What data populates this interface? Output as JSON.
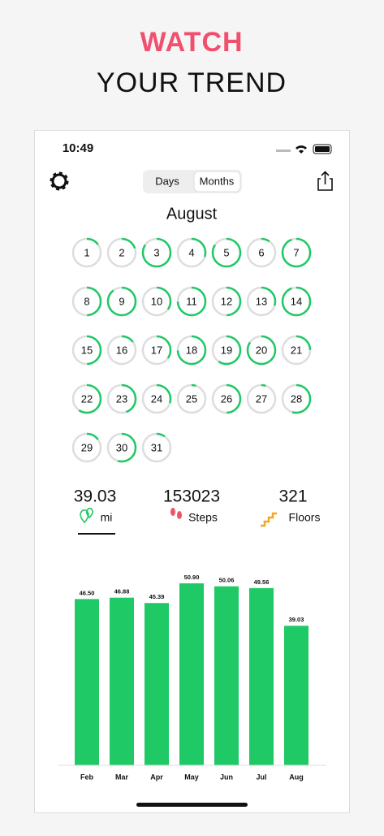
{
  "header": {
    "line1": "WATCH",
    "line2": "YOUR TREND"
  },
  "status_bar": {
    "time": "10:49"
  },
  "segmented_control": {
    "options": [
      "Days",
      "Months"
    ],
    "selected": 1
  },
  "calendar": {
    "month": "August",
    "days": [
      {
        "day": 1,
        "progress": 0.15
      },
      {
        "day": 2,
        "progress": 0.2
      },
      {
        "day": 3,
        "progress": 0.85
      },
      {
        "day": 4,
        "progress": 0.3
      },
      {
        "day": 5,
        "progress": 0.85
      },
      {
        "day": 6,
        "progress": 0.1
      },
      {
        "day": 7,
        "progress": 0.95
      },
      {
        "day": 8,
        "progress": 0.5
      },
      {
        "day": 9,
        "progress": 0.9
      },
      {
        "day": 10,
        "progress": 0.35
      },
      {
        "day": 11,
        "progress": 0.75
      },
      {
        "day": 12,
        "progress": 0.5
      },
      {
        "day": 13,
        "progress": 0.3
      },
      {
        "day": 14,
        "progress": 0.95
      },
      {
        "day": 15,
        "progress": 0.5
      },
      {
        "day": 16,
        "progress": 0.15
      },
      {
        "day": 17,
        "progress": 0.35
      },
      {
        "day": 18,
        "progress": 0.75
      },
      {
        "day": 19,
        "progress": 0.6
      },
      {
        "day": 20,
        "progress": 0.85
      },
      {
        "day": 21,
        "progress": 0.25
      },
      {
        "day": 22,
        "progress": 0.6
      },
      {
        "day": 23,
        "progress": 0.45
      },
      {
        "day": 24,
        "progress": 0.3
      },
      {
        "day": 25,
        "progress": 0.05
      },
      {
        "day": 26,
        "progress": 0.5
      },
      {
        "day": 27,
        "progress": 0.05
      },
      {
        "day": 28,
        "progress": 0.55
      },
      {
        "day": 29,
        "progress": 0.15
      },
      {
        "day": 30,
        "progress": 0.55
      },
      {
        "day": 31,
        "progress": 0.1
      }
    ]
  },
  "stats": [
    {
      "value": 39.03,
      "label": "mi"
    },
    {
      "value": 153023,
      "label": "Steps"
    },
    {
      "value": 321,
      "label": "Floors"
    }
  ],
  "chart_data": {
    "type": "bar",
    "categories": [
      "Feb",
      "Mar",
      "Apr",
      "May",
      "Jun",
      "Jul",
      "Aug"
    ],
    "values": [
      46.5,
      46.88,
      45.39,
      50.9,
      50.06,
      49.56,
      39.03
    ],
    "value_labels": [
      "46.50",
      "46.88",
      "45.39",
      "50.90",
      "50.06",
      "49.56",
      "39.03"
    ],
    "color": "#1fc965"
  }
}
